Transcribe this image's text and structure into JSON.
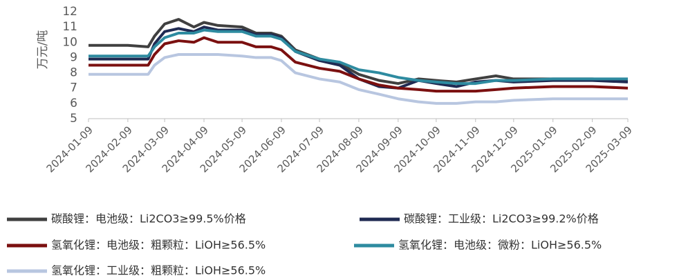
{
  "chart_data": {
    "type": "line",
    "y_label": "万元/吨",
    "x": [
      "2024-01-09",
      "2024-01-25",
      "2024-02-09",
      "2024-02-25",
      "2024-03-01",
      "2024-03-09",
      "2024-03-20",
      "2024-04-01",
      "2024-04-09",
      "2024-04-20",
      "2024-05-09",
      "2024-05-20",
      "2024-06-01",
      "2024-06-09",
      "2024-06-20",
      "2024-07-09",
      "2024-07-25",
      "2024-08-09",
      "2024-08-25",
      "2024-09-09",
      "2024-09-25",
      "2024-10-09",
      "2024-10-25",
      "2024-11-09",
      "2024-11-25",
      "2024-12-09",
      "2025-01-09",
      "2025-02-09",
      "2025-03-09"
    ],
    "xlim": [
      "2024-01-09",
      "2025-03-09"
    ],
    "xticks": [
      "2024-01-09",
      "2024-02-09",
      "2024-03-09",
      "2024-04-09",
      "2024-05-09",
      "2024-06-09",
      "2024-07-09",
      "2024-08-09",
      "2024-09-09",
      "2024-10-09",
      "2024-11-09",
      "2024-12-09",
      "2025-01-09",
      "2025-02-09",
      "2025-03-09"
    ],
    "ylim": [
      5,
      12
    ],
    "yticks": [
      5,
      6,
      7,
      8,
      9,
      10,
      11,
      12
    ],
    "series": [
      {
        "name": "碳酸锂：电池级：Li2CO3≥99.5%价格",
        "color": "#404040",
        "values": [
          9.8,
          9.8,
          9.8,
          9.7,
          10.4,
          11.2,
          11.5,
          11.0,
          11.3,
          11.1,
          11.0,
          10.6,
          10.6,
          10.4,
          9.5,
          8.9,
          8.6,
          7.9,
          7.5,
          7.3,
          7.6,
          7.5,
          7.4,
          7.6,
          7.8,
          7.6,
          7.6,
          7.6,
          7.5
        ]
      },
      {
        "name": "碳酸锂：工业级：Li2CO3≥99.2%价格",
        "color": "#1f2a52",
        "values": [
          8.9,
          8.9,
          8.9,
          8.9,
          9.9,
          10.7,
          10.9,
          10.7,
          11.0,
          10.8,
          10.8,
          10.5,
          10.5,
          10.3,
          9.4,
          8.8,
          8.5,
          7.6,
          7.1,
          7.0,
          7.5,
          7.3,
          7.1,
          7.4,
          7.5,
          7.4,
          7.5,
          7.5,
          7.4
        ]
      },
      {
        "name": "氢氧化锂：电池级：粗颗粒：LiOH≥56.5%",
        "color": "#7b1010",
        "values": [
          8.5,
          8.5,
          8.5,
          8.5,
          9.2,
          9.9,
          10.1,
          10.0,
          10.3,
          10.0,
          10.0,
          9.7,
          9.7,
          9.5,
          8.7,
          8.3,
          8.1,
          7.6,
          7.2,
          7.0,
          6.9,
          6.8,
          6.8,
          6.8,
          6.9,
          7.0,
          7.1,
          7.1,
          7.0
        ]
      },
      {
        "name": "氢氧化锂：电池级：微粉：LiOH≥56.5%",
        "color": "#2e8ba0",
        "values": [
          9.1,
          9.1,
          9.1,
          9.1,
          9.7,
          10.3,
          10.6,
          10.6,
          10.8,
          10.7,
          10.7,
          10.4,
          10.4,
          10.2,
          9.4,
          8.9,
          8.7,
          8.2,
          8.0,
          7.7,
          7.5,
          7.4,
          7.3,
          7.3,
          7.5,
          7.5,
          7.6,
          7.6,
          7.6
        ]
      },
      {
        "name": "氢氧化锂：工业级：粗颗粒：LiOH≥56.5%",
        "color": "#b8c6e0",
        "values": [
          7.9,
          7.9,
          7.9,
          7.9,
          8.5,
          9.0,
          9.2,
          9.2,
          9.2,
          9.2,
          9.1,
          9.0,
          9.0,
          8.8,
          8.0,
          7.6,
          7.4,
          6.9,
          6.6,
          6.3,
          6.1,
          6.0,
          6.0,
          6.1,
          6.1,
          6.2,
          6.3,
          6.3,
          6.3
        ]
      }
    ]
  }
}
